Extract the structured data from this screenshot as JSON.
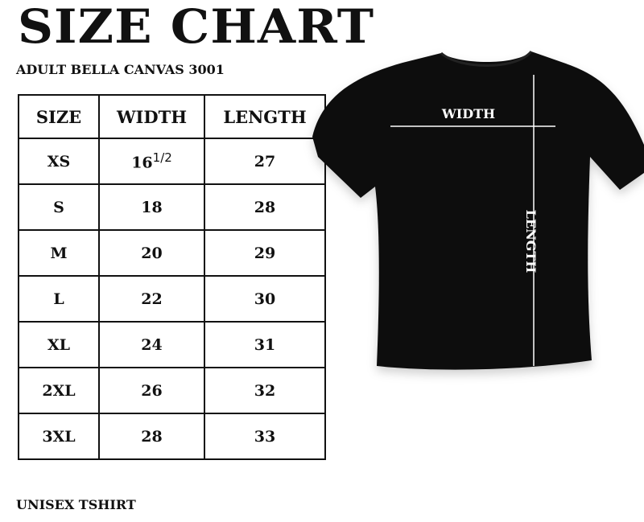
{
  "title": "SIZE CHART",
  "subtitle": "ADULT BELLA CANVAS 3001",
  "table": {
    "headers": [
      "SIZE",
      "WIDTH",
      "LENGTH"
    ],
    "rows": [
      {
        "size": "XS",
        "width": "16",
        "width_fraction": "1/2",
        "length": "27"
      },
      {
        "size": "S",
        "width": "18",
        "length": "28"
      },
      {
        "size": "M",
        "width": "20",
        "length": "29"
      },
      {
        "size": "L",
        "width": "22",
        "length": "30"
      },
      {
        "size": "XL",
        "width": "24",
        "length": "31"
      },
      {
        "size": "2XL",
        "width": "26",
        "length": "32"
      },
      {
        "size": "3XL",
        "width": "28",
        "length": "33"
      }
    ]
  },
  "shirt": {
    "width_label": "WIDTH",
    "length_label": "LENGTH",
    "color": "#0d0d0d"
  },
  "footer": "UNISEX TSHIRT"
}
